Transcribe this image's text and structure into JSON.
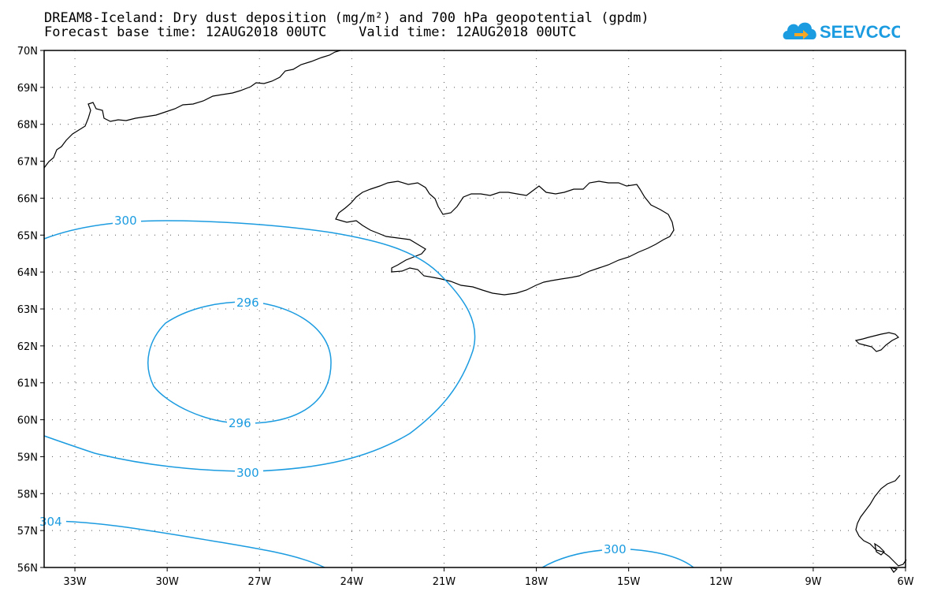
{
  "title": {
    "line1": "DREAM8-Iceland: Dry dust deposition (mg/m²) and 700 hPa geopotential (gpdm)",
    "line2": "Forecast base time: 12AUG2018 00UTC    Valid time: 12AUG2018 00UTC"
  },
  "logo": {
    "text": "SEEVCCC",
    "color": "#1b9be0",
    "accent": "#f5a623",
    "icon": "cloud-arrow-icon"
  },
  "map": {
    "region": "Iceland and North Atlantic",
    "lon_range": [
      -34,
      -6
    ],
    "lat_range": [
      56,
      70
    ],
    "grid": "dotted",
    "contour_color": "#1b9be0",
    "lon_ticks": [
      "33W",
      "30W",
      "27W",
      "24W",
      "21W",
      "18W",
      "15W",
      "12W",
      "9W",
      "6W"
    ],
    "lat_ticks": [
      "70N",
      "69N",
      "68N",
      "67N",
      "66N",
      "65N",
      "64N",
      "63N",
      "62N",
      "61N",
      "60N",
      "59N",
      "58N",
      "57N",
      "56N"
    ],
    "contour_labels": [
      {
        "id": "c300a",
        "text": "300"
      },
      {
        "id": "c296a",
        "text": "296"
      },
      {
        "id": "c296b",
        "text": "296"
      },
      {
        "id": "c300b",
        "text": "300"
      },
      {
        "id": "c304",
        "text": "304"
      },
      {
        "id": "c300c",
        "text": "300"
      }
    ]
  }
}
